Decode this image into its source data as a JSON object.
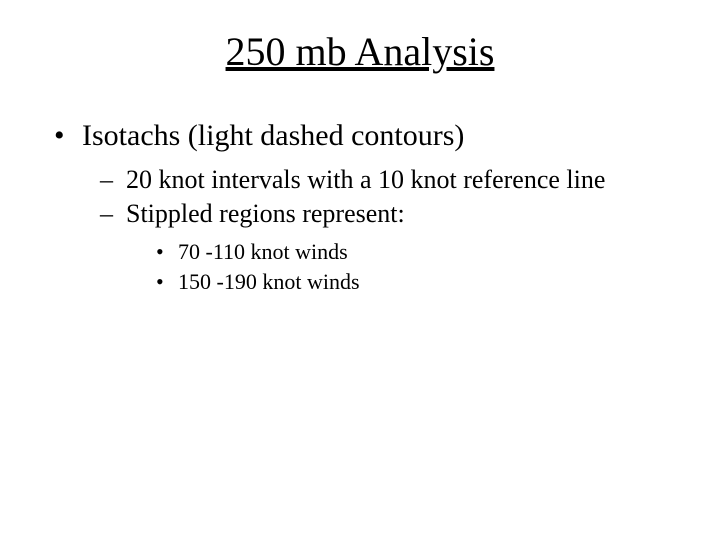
{
  "title": "250 mb Analysis",
  "bullets": {
    "l1_0": "Isotachs (light dashed contours)",
    "l2_0": "20 knot intervals with a 10 knot reference line",
    "l2_1": "Stippled regions represent:",
    "l3_0": "70 -110 knot winds",
    "l3_1": "150 -190 knot winds"
  },
  "colors": {
    "text": "#000000",
    "background": "#ffffff"
  },
  "typography": {
    "font_family": "Times New Roman",
    "title_fontsize": 40,
    "l1_fontsize": 30,
    "l2_fontsize": 26,
    "l3_fontsize": 22
  }
}
